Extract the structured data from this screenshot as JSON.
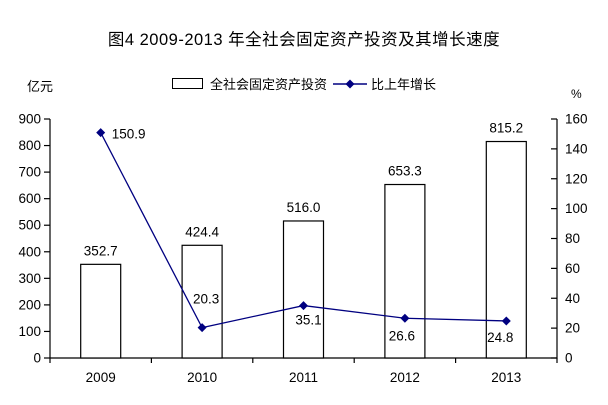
{
  "title": "图4 2009-2013 年全社会固定资产投资及其增长速度",
  "axes": {
    "left_unit": "亿元",
    "right_unit": "%"
  },
  "legend": {
    "bar_label": "全社会固定资产投资",
    "line_label": "比上年增长"
  },
  "colors": {
    "line": "#000080",
    "bar_fill": "#ffffff",
    "bar_border": "#000000",
    "axis": "#000000",
    "text": "#000000"
  },
  "chart_data": {
    "type": "bar",
    "combo": "bar+line",
    "title": "图4 2009-2013 年全社会固定资产投资及其增长速度",
    "categories": [
      "2009",
      "2010",
      "2011",
      "2012",
      "2013"
    ],
    "series": [
      {
        "name": "全社会固定资产投资",
        "type": "bar",
        "axis": "left",
        "unit": "亿元",
        "values": [
          352.7,
          424.4,
          516.0,
          653.3,
          815.2
        ]
      },
      {
        "name": "比上年增长",
        "type": "line",
        "axis": "right",
        "unit": "%",
        "values": [
          150.9,
          20.3,
          35.1,
          26.6,
          24.8
        ]
      }
    ],
    "left_axis": {
      "min": 0,
      "max": 900,
      "step": 100,
      "unit": "亿元"
    },
    "right_axis": {
      "min": 0,
      "max": 160,
      "step": 20,
      "unit": "%"
    },
    "legend_position": "top",
    "grid": false,
    "data_labels": true
  }
}
